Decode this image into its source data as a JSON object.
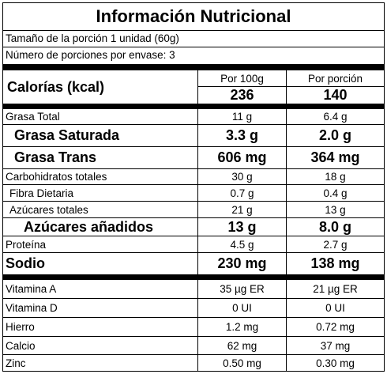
{
  "title": "Información Nutricional",
  "serving": {
    "size": "Tamaño de la porción 1 unidad (60g)",
    "servings": "Número de porciones por envase:  3"
  },
  "header": {
    "calories_label": "Calorías (kcal)",
    "col_100": "Por 100g",
    "col_portion": "Por porción",
    "cal_100": "236",
    "cal_portion": "140"
  },
  "nutrients": [
    {
      "name": "Grasa Total",
      "v100": "11 g",
      "vpor": "6.4 g"
    },
    {
      "name": "Grasa Saturada",
      "v100": "3.3 g",
      "vpor": "2.0 g"
    },
    {
      "name": "Grasa Trans",
      "v100": "606 mg",
      "vpor": "364 mg"
    },
    {
      "name": "Carbohidratos totales",
      "v100": "30 g",
      "vpor": "18 g"
    },
    {
      "name": "Fibra Dietaria",
      "v100": "0.7 g",
      "vpor": "0.4 g"
    },
    {
      "name": "Azúcares totales",
      "v100": "21 g",
      "vpor": "13 g"
    },
    {
      "name": "Azúcares añadidos",
      "v100": "13 g",
      "vpor": "8.0 g"
    },
    {
      "name": "Proteína",
      "v100": "4.5 g",
      "vpor": "2.7 g"
    },
    {
      "name": "Sodio",
      "v100": "230 mg",
      "vpor": "138 mg"
    }
  ],
  "vitamins": [
    {
      "name": "Vitamina A",
      "v100": "35 µg ER",
      "vpor": "21 µg ER"
    },
    {
      "name": "Vitamina D",
      "v100": "0 UI",
      "vpor": "0 UI"
    },
    {
      "name": "Hierro",
      "v100": "1.2 mg",
      "vpor": "0.72 mg"
    },
    {
      "name": "Calcio",
      "v100": "62 mg",
      "vpor": "37 mg"
    },
    {
      "name": "Zinc",
      "v100": "0.50 mg",
      "vpor": "0.30 mg"
    }
  ]
}
